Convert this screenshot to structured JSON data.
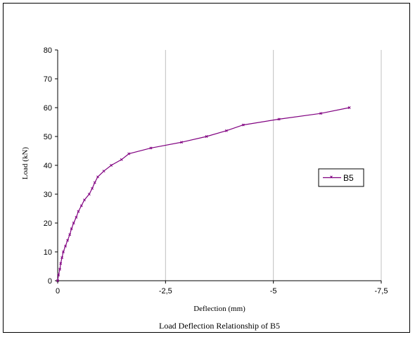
{
  "chart_data": {
    "type": "line",
    "title": "Load Deflection Relationship of B5",
    "xlabel": "Deflection (mm)",
    "ylabel": "Load (kN)",
    "xlim": [
      0,
      -7.5
    ],
    "ylim": [
      0,
      80
    ],
    "x_ticks": [
      0,
      -2.5,
      -5,
      -7.5
    ],
    "x_tick_labels": [
      "0",
      "-2,5",
      "-5",
      "-7,5"
    ],
    "y_ticks": [
      0,
      10,
      20,
      30,
      40,
      50,
      60,
      70,
      80
    ],
    "y_tick_labels": [
      "0",
      "10",
      "20",
      "30",
      "40",
      "50",
      "60",
      "70",
      "80"
    ],
    "grid": "vertical",
    "legend_position": "right",
    "series": [
      {
        "name": "B5",
        "color": "#800080",
        "marker": "x",
        "points": [
          [
            0,
            0
          ],
          [
            -0.02,
            2
          ],
          [
            -0.05,
            4
          ],
          [
            -0.07,
            6
          ],
          [
            -0.1,
            8
          ],
          [
            -0.13,
            10
          ],
          [
            -0.18,
            12
          ],
          [
            -0.23,
            14
          ],
          [
            -0.28,
            16
          ],
          [
            -0.32,
            18
          ],
          [
            -0.37,
            20
          ],
          [
            -0.43,
            22
          ],
          [
            -0.48,
            24
          ],
          [
            -0.55,
            26
          ],
          [
            -0.62,
            28
          ],
          [
            -0.73,
            30
          ],
          [
            -0.8,
            32
          ],
          [
            -0.86,
            34
          ],
          [
            -0.93,
            36
          ],
          [
            -1.07,
            38
          ],
          [
            -1.24,
            40
          ],
          [
            -1.48,
            42
          ],
          [
            -1.65,
            44
          ],
          [
            -2.16,
            46
          ],
          [
            -2.87,
            48
          ],
          [
            -3.45,
            50
          ],
          [
            -3.91,
            52
          ],
          [
            -4.3,
            54
          ],
          [
            -5.13,
            56
          ],
          [
            -6.1,
            58
          ],
          [
            -6.76,
            60
          ]
        ]
      }
    ]
  }
}
